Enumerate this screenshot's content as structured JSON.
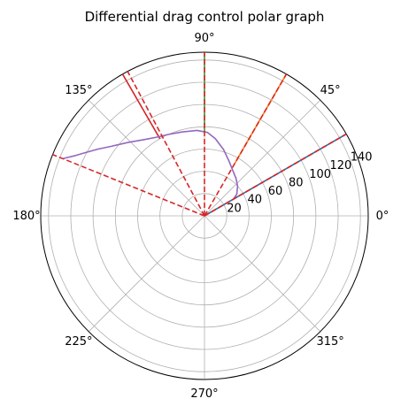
{
  "chart_data": {
    "type": "polar",
    "title": "Differential drag control polar graph",
    "angle_unit": "degrees",
    "angle_ticks": [
      "0°",
      "45°",
      "90°",
      "135°",
      "180°",
      "225°",
      "270°",
      "315°"
    ],
    "angle_tick_values": [
      0,
      45,
      90,
      135,
      180,
      225,
      270,
      315
    ],
    "radius_ticks": [
      "20",
      "40",
      "60",
      "80",
      "100",
      "120",
      "140"
    ],
    "radius_tick_values": [
      20,
      40,
      60,
      80,
      100,
      120,
      140
    ],
    "rlim": [
      0,
      147
    ],
    "rlabel_position_deg": 22.5,
    "grid": true,
    "series": [
      {
        "color": "#1f77b4",
        "style": "solid",
        "points": [
          [
            30,
            0
          ],
          [
            30,
            147
          ]
        ]
      },
      {
        "color": "#ff7f0e",
        "style": "solid",
        "points": [
          [
            60,
            55
          ],
          [
            60,
            147
          ]
        ]
      },
      {
        "color": "#2ca02c",
        "style": "solid",
        "points": [
          [
            90,
            75
          ],
          [
            90,
            147
          ]
        ]
      },
      {
        "color": "#d62728",
        "style": "solid",
        "points": [
          [
            120,
            80
          ],
          [
            120,
            147
          ]
        ]
      },
      {
        "color": "#9467bd",
        "style": "solid",
        "points": [
          [
            30,
            30
          ],
          [
            34,
            35
          ],
          [
            42,
            40
          ],
          [
            50,
            44
          ],
          [
            58,
            48
          ],
          [
            66,
            54
          ],
          [
            74,
            62
          ],
          [
            82,
            70
          ],
          [
            88,
            75
          ],
          [
            95,
            77
          ],
          [
            105,
            78
          ],
          [
            114,
            80
          ],
          [
            120,
            82
          ],
          [
            128,
            87
          ],
          [
            136,
            95
          ],
          [
            143,
            104
          ],
          [
            148,
            113
          ],
          [
            152,
            121
          ],
          [
            155,
            128
          ],
          [
            157,
            134
          ],
          [
            158,
            137
          ]
        ]
      },
      {
        "color": "#d62728",
        "style": "dashed",
        "points": [
          [
            30,
            0
          ],
          [
            30,
            147
          ]
        ]
      },
      {
        "color": "#d62728",
        "style": "dashed",
        "points": [
          [
            60,
            0
          ],
          [
            60,
            147
          ]
        ]
      },
      {
        "color": "#d62728",
        "style": "dashed",
        "points": [
          [
            90,
            0
          ],
          [
            90,
            147
          ]
        ]
      },
      {
        "color": "#d62728",
        "style": "dashed",
        "points": [
          [
            118,
            0
          ],
          [
            118,
            147
          ]
        ]
      },
      {
        "color": "#d62728",
        "style": "dashed",
        "points": [
          [
            158,
            0
          ],
          [
            158,
            147
          ]
        ]
      }
    ]
  }
}
